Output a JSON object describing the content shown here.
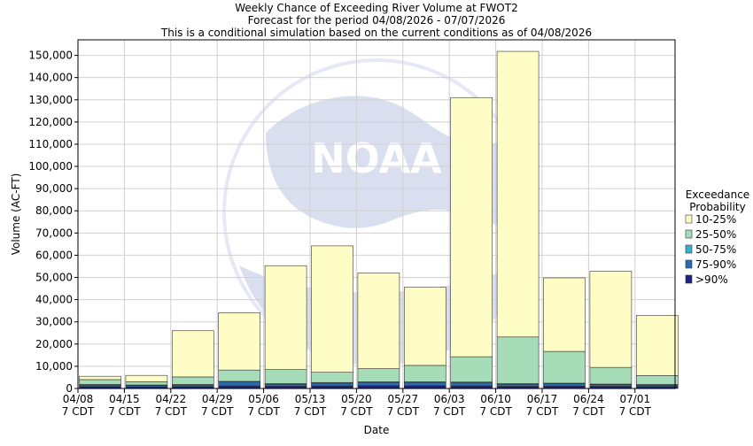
{
  "chart_data": {
    "type": "bar",
    "stacked": true,
    "title": "Weekly Chance of Exceeding River Volume at FWOT2",
    "subtitle": "Forecast for the period 04/08/2026 - 07/07/2026",
    "subtitle2": "This is a conditional simulation based on the current conditions as of 04/08/2026",
    "xlabel": "Date",
    "ylabel": "Volume (AC-FT)",
    "ylim": [
      0,
      157000
    ],
    "yticks": [
      0,
      10000,
      20000,
      30000,
      40000,
      50000,
      60000,
      70000,
      80000,
      90000,
      100000,
      110000,
      120000,
      130000,
      140000,
      150000
    ],
    "ytick_labels": [
      "0",
      "10,000",
      "20,000",
      "30,000",
      "40,000",
      "50,000",
      "60,000",
      "70,000",
      "80,000",
      "90,000",
      "100,000",
      "110,000",
      "120,000",
      "130,000",
      "140,000",
      "150,000"
    ],
    "grid": true,
    "categories": [
      [
        "04/08",
        "7 CDT"
      ],
      [
        "04/15",
        "7 CDT"
      ],
      [
        "04/22",
        "7 CDT"
      ],
      [
        "04/29",
        "7 CDT"
      ],
      [
        "05/06",
        "7 CDT"
      ],
      [
        "05/13",
        "7 CDT"
      ],
      [
        "05/20",
        "7 CDT"
      ],
      [
        "05/27",
        "7 CDT"
      ],
      [
        "06/03",
        "7 CDT"
      ],
      [
        "06/10",
        "7 CDT"
      ],
      [
        "06/17",
        "7 CDT"
      ],
      [
        "06/24",
        "7 CDT"
      ],
      [
        "07/01",
        "7 CDT"
      ]
    ],
    "series": [
      {
        "name": ">90%",
        "color": "#1a237e",
        "values": [
          900,
          800,
          900,
          1200,
          1100,
          1200,
          1300,
          1300,
          1200,
          1000,
          1100,
          1000,
          900
        ]
      },
      {
        "name": "75-90%",
        "color": "#2b6cb0",
        "values": [
          700,
          600,
          700,
          1700,
          800,
          1200,
          1400,
          1400,
          1400,
          900,
          1000,
          700,
          600
        ]
      },
      {
        "name": "50-75%",
        "color": "#3aaecf",
        "values": [
          200,
          200,
          200,
          300,
          300,
          300,
          300,
          300,
          300,
          300,
          300,
          300,
          300
        ]
      },
      {
        "name": "25-50%",
        "color": "#a6dcb8",
        "values": [
          2200,
          1400,
          3400,
          5100,
          6300,
          4600,
          5900,
          7400,
          11400,
          21000,
          14300,
          7500,
          4000
        ]
      },
      {
        "name": "10-25%",
        "color": "#fffdc6",
        "values": [
          1500,
          2900,
          20800,
          25800,
          46800,
          56900,
          43100,
          35200,
          116700,
          128600,
          33100,
          43300,
          27100
        ]
      }
    ],
    "legend": {
      "title": "Exceedance Probability",
      "title_lines": [
        "Exceedance",
        "Probability"
      ],
      "placement": "right",
      "order": [
        "10-25%",
        "25-50%",
        "50-75%",
        "75-90%",
        ">90%"
      ]
    },
    "watermark": "NATIONAL OCEANIC AND ATMOSPHERIC ADMINISTRATION"
  }
}
